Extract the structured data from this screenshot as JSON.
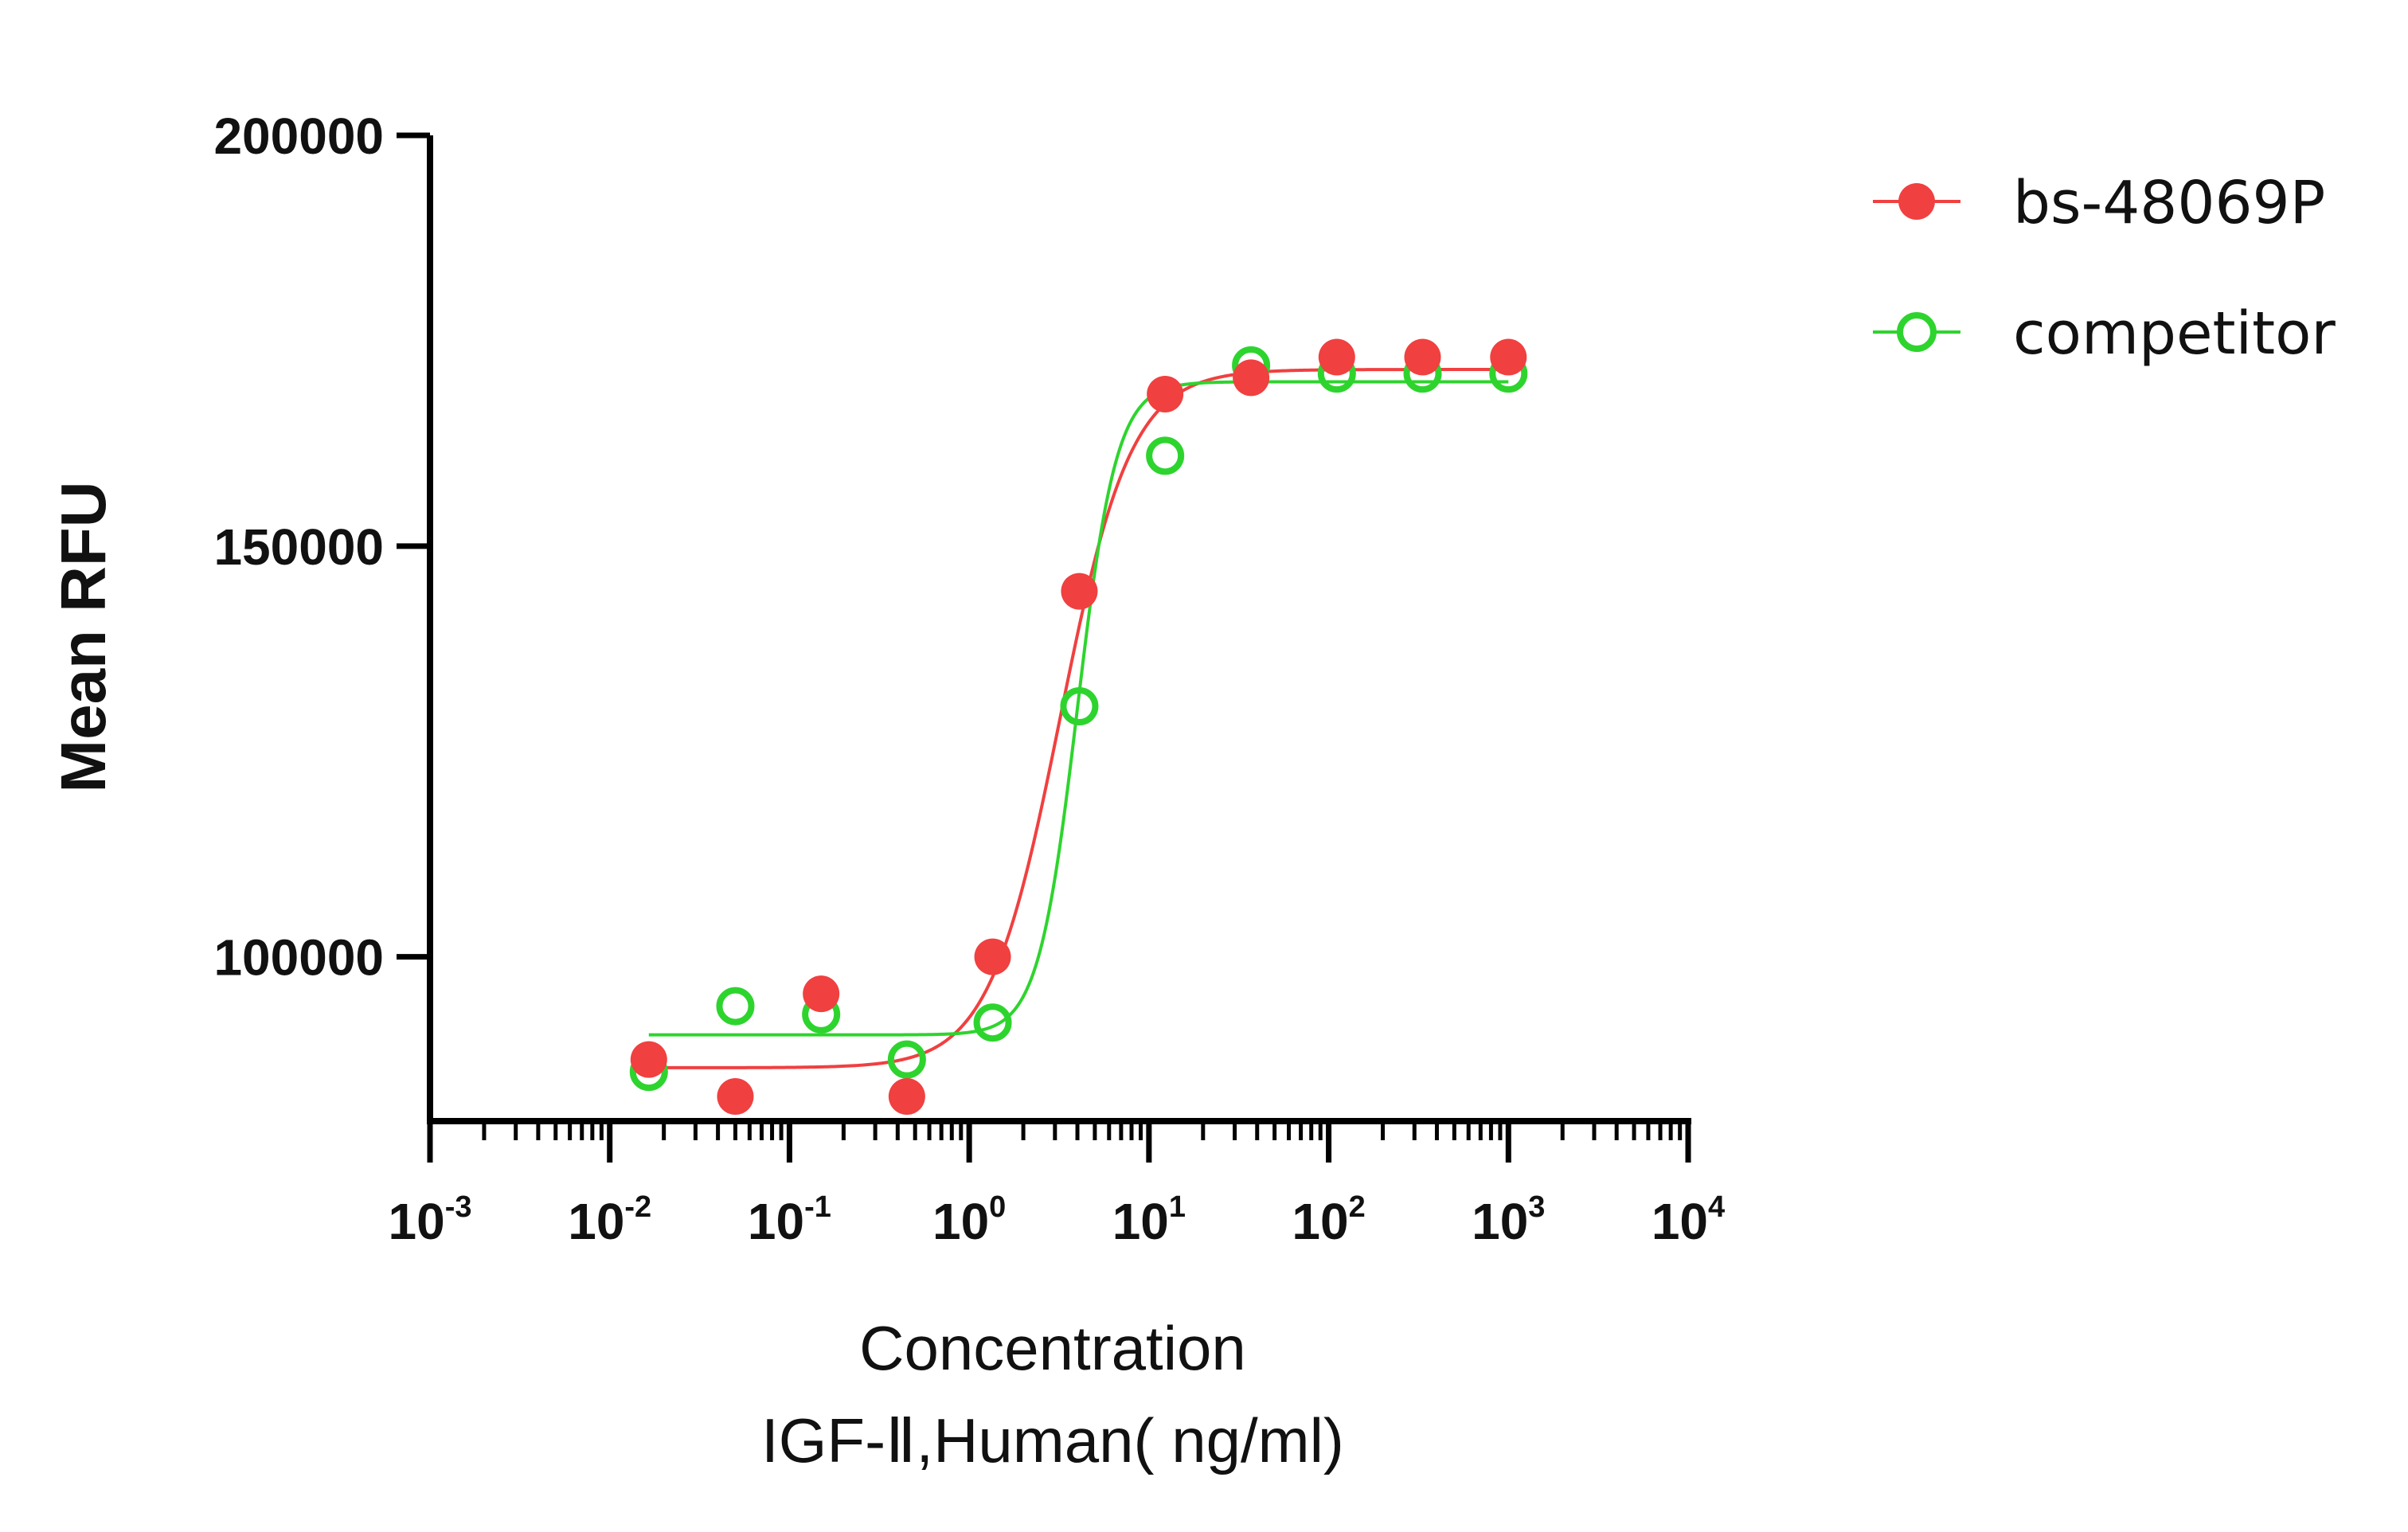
{
  "chart_data": {
    "type": "scatter",
    "xscale": "log",
    "xlim": [
      0.001,
      10000
    ],
    "ylim": [
      80000,
      200000
    ],
    "xlabel": "Concentration",
    "xlabel_line2": "IGF-Ⅱ,Human( ng/ml)",
    "ylabel": "Mean RFU",
    "y_ticks": [
      100000,
      150000,
      200000
    ],
    "y_tick_labels": [
      "100000",
      "150000",
      "200000"
    ],
    "x_ticks": [
      0.001,
      0.01,
      0.1,
      1,
      10,
      100,
      1000,
      10000
    ],
    "x_tick_labels": [
      {
        "base": "10",
        "exp": "-3"
      },
      {
        "base": "10",
        "exp": "-2"
      },
      {
        "base": "10",
        "exp": "-1"
      },
      {
        "base": "10",
        "exp": "0"
      },
      {
        "base": "10",
        "exp": "1"
      },
      {
        "base": "10",
        "exp": "2"
      },
      {
        "base": "10",
        "exp": "3"
      },
      {
        "base": "10",
        "exp": "4"
      }
    ],
    "legend_position": "top-right",
    "grid": false,
    "series": [
      {
        "name": "bs-48069P",
        "color": "#f04040",
        "marker": "filled-circle",
        "x": [
          0.0165,
          0.05,
          0.15,
          0.45,
          1.35,
          4.1,
          12.3,
          37,
          111,
          333,
          1000
        ],
        "y": [
          87500,
          83000,
          95500,
          83000,
          100000,
          144500,
          168500,
          170500,
          173000,
          173000,
          173000
        ],
        "fit": {
          "bottom": 86500,
          "top": 171500,
          "ec50": 3.2,
          "hill": 2.2
        }
      },
      {
        "name": "competitor",
        "color": "#2ed42e",
        "marker": "open-circle",
        "x": [
          0.0165,
          0.05,
          0.15,
          0.45,
          1.35,
          4.1,
          12.3,
          37,
          111,
          333,
          1000
        ],
        "y": [
          86000,
          94000,
          93000,
          87500,
          92000,
          130500,
          161000,
          172000,
          171000,
          171000,
          171000
        ],
        "fit": {
          "bottom": 90500,
          "top": 170000,
          "ec50": 4.0,
          "hill": 4.0
        }
      }
    ]
  }
}
